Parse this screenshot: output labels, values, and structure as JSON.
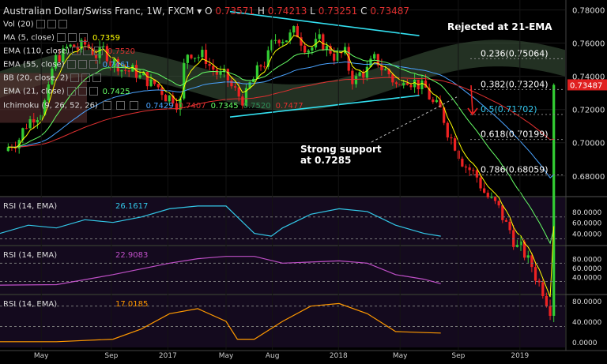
{
  "header": {
    "symbol": "Australian Dollar/Swiss Franc, 1W, FXCM",
    "o_label": "O",
    "o": "0.73571",
    "h_label": "H",
    "h": "0.74213",
    "l_label": "L",
    "l": "0.73251",
    "c_label": "C",
    "c": "0.73487"
  },
  "indicators": [
    {
      "label": "Vol (20)",
      "value": "",
      "color": "#dddddd"
    },
    {
      "label": "MA (5, close)",
      "value": "0.7359",
      "color": "#ffff00"
    },
    {
      "label": "EMA (110, close)",
      "value": "0.7520",
      "color": "#e03030"
    },
    {
      "label": "EMA (55, close)",
      "value": "0.7461",
      "color": "#4aa3ff"
    },
    {
      "label": "BB (20, close, 2)",
      "value": "",
      "color": "#dddddd"
    },
    {
      "label": "EMA (21, close)",
      "value": "0.7425",
      "color": "#66ff66"
    }
  ],
  "ichimoku": {
    "label": "Ichimoku (9, 26, 52, 26)",
    "values": [
      {
        "v": "0.7429",
        "color": "#4aa3ff"
      },
      {
        "v": "0.7407",
        "color": "#e03030"
      },
      {
        "v": "0.7345",
        "color": "#66ff66"
      },
      {
        "v": "0.7520",
        "color": "#2e8b57"
      },
      {
        "v": "0.7477",
        "color": "#e03030"
      }
    ]
  },
  "annotations": {
    "rejected": "Rejected at 21-EMA",
    "support_line1": "Strong support",
    "support_line2": "at 0.7285"
  },
  "price_badge": "0.73487",
  "colors": {
    "up": "#33cc33",
    "down": "#ee2222",
    "trend": "#33e0f0",
    "cloud_green": "#3f5a3f",
    "cloud_red": "#5a3030"
  },
  "chart_data": [
    {
      "type": "candlestick",
      "title": "Australian Dollar/Swiss Franc, 1W, FXCM",
      "ylim": [
        0.668,
        0.786
      ],
      "yticks": [
        0.78,
        0.76,
        0.74,
        0.72,
        0.7,
        0.68
      ],
      "ytick_labels": [
        "0.78000",
        "0.76000",
        "0.74000",
        "0.72000",
        "0.70000",
        "0.68000"
      ],
      "xticks": [
        {
          "label": "May",
          "x": 0.073
        },
        {
          "label": "Sep",
          "x": 0.197
        },
        {
          "label": "2017",
          "x": 0.297
        },
        {
          "label": "May",
          "x": 0.4
        },
        {
          "label": "Aug",
          "x": 0.482
        },
        {
          "label": "2018",
          "x": 0.599
        },
        {
          "label": "May",
          "x": 0.708
        },
        {
          "label": "Sep",
          "x": 0.811
        },
        {
          "label": "2019",
          "x": 0.92
        }
      ],
      "fib_levels": [
        {
          "ratio": "0.236",
          "label": "0.236(0.75064)",
          "value": 0.75064,
          "color": "#ffffff"
        },
        {
          "ratio": "0.382",
          "label": "0.382(0.73204)",
          "value": 0.73204,
          "color": "#ffffff"
        },
        {
          "ratio": "0.5",
          "label": "0.5(0.71702)",
          "value": 0.71702,
          "color": "#33c8f0"
        },
        {
          "ratio": "0.618",
          "label": "0.618(0.70199)",
          "value": 0.70199,
          "color": "#ffffff"
        },
        {
          "ratio": "0.786",
          "label": "0.786(0.68059)",
          "value": 0.68059,
          "color": "#ffffff"
        }
      ],
      "trendlines": [
        {
          "name": "resistance",
          "from": [
            0.0,
            0.779
          ],
          "to": [
            1.0,
            0.7645
          ]
        },
        {
          "name": "support",
          "from": [
            0.0,
            0.7155
          ],
          "to": [
            1.0,
            0.7285
          ]
        }
      ],
      "trendline_x": [
        0.407,
        0.742
      ],
      "last_close": 0.73487
    },
    {
      "type": "line",
      "title": "RSI (14, EMA)",
      "value_label": "26.1617",
      "ylim": [
        25,
        100
      ],
      "yticks": [
        80,
        60,
        40
      ],
      "ytick_labels": [
        "80.0000",
        "60.0000",
        "40.0000"
      ],
      "levels": [
        70,
        30
      ],
      "color": "#33c8e8",
      "x": [
        0.0,
        0.05,
        0.1,
        0.15,
        0.2,
        0.25,
        0.3,
        0.35,
        0.4,
        0.42,
        0.45,
        0.48,
        0.5,
        0.55,
        0.6,
        0.65,
        0.7,
        0.75,
        0.78
      ],
      "values": [
        40,
        55,
        50,
        65,
        60,
        70,
        85,
        90,
        90,
        70,
        40,
        35,
        50,
        75,
        85,
        80,
        55,
        40,
        35
      ]
    },
    {
      "type": "line",
      "title": "RSI (14, EMA)",
      "value_label": "22.9083",
      "ylim": [
        10,
        100
      ],
      "yticks": [
        80,
        60,
        40
      ],
      "ytick_labels": [
        "80.0000",
        "60.0000",
        "40.0000"
      ],
      "levels": [
        70,
        30
      ],
      "color": "#c050c8",
      "x": [
        0.0,
        0.1,
        0.2,
        0.3,
        0.35,
        0.4,
        0.45,
        0.5,
        0.6,
        0.65,
        0.7,
        0.75,
        0.78
      ],
      "values": [
        22,
        23,
        45,
        70,
        80,
        85,
        85,
        70,
        75,
        70,
        45,
        35,
        25
      ]
    },
    {
      "type": "line",
      "title": "RSI (14, EMA)",
      "value_label": "17.0185",
      "ylim": [
        -5,
        85
      ],
      "yticks": [
        80,
        40,
        0
      ],
      "ytick_labels": [
        "80.0000",
        "40.0000",
        "0.0000"
      ],
      "levels": [
        70,
        30
      ],
      "color": "#ff9900",
      "x": [
        0.0,
        0.1,
        0.2,
        0.25,
        0.3,
        0.35,
        0.4,
        0.42,
        0.45,
        0.5,
        0.55,
        0.6,
        0.65,
        0.7,
        0.75,
        0.78
      ],
      "values": [
        0,
        0,
        5,
        25,
        55,
        65,
        40,
        5,
        5,
        40,
        70,
        75,
        55,
        20,
        18,
        17
      ]
    }
  ]
}
